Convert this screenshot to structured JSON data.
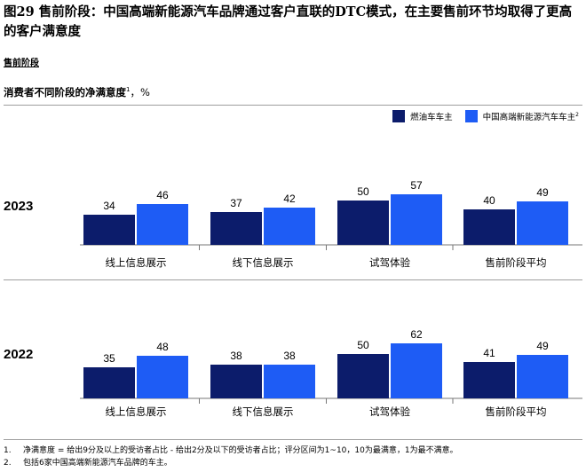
{
  "title": "图29 售前阶段：中国高端新能源汽车品牌通过客户直联的DTC模式，在主要售前环节均取得了更高的客户满意度",
  "section_label": "售前阶段",
  "subtitle": "消费者不同阶段的净满意度",
  "subtitle_sup": "1",
  "subtitle_unit": "，%",
  "legend": [
    {
      "name": "燃油车车主",
      "sup": "",
      "color": "#0c1c6b"
    },
    {
      "name": "中国高端新能源汽车车主",
      "sup": "2",
      "color": "#1e5cf5"
    }
  ],
  "chart_data": [
    {
      "type": "bar",
      "year_label": "2023",
      "categories": [
        "线上信息展示",
        "线下信息展示",
        "试驾体验",
        "售前阶段平均"
      ],
      "series": [
        {
          "name": "燃油车车主",
          "values": [
            34,
            37,
            50,
            40
          ]
        },
        {
          "name": "中国高端新能源汽车车主",
          "values": [
            46,
            42,
            57,
            49
          ]
        }
      ],
      "ylim": [
        0,
        70
      ]
    },
    {
      "type": "bar",
      "year_label": "2022",
      "categories": [
        "线上信息展示",
        "线下信息展示",
        "试驾体验",
        "售前阶段平均"
      ],
      "series": [
        {
          "name": "燃油车车主",
          "values": [
            35,
            38,
            50,
            41
          ]
        },
        {
          "name": "中国高端新能源汽车车主",
          "values": [
            48,
            38,
            62,
            49
          ]
        }
      ],
      "ylim": [
        0,
        70
      ]
    }
  ],
  "footnotes": [
    {
      "num": "1.",
      "text": "净满意度 = 给出9分及以上的受访者占比 - 给出2分及以下的受访者占比；评分区间为1~10，10为最满意，1为最不满意。"
    },
    {
      "num": "2.",
      "text": "包括6家中国高端新能源汽车品牌的车主。"
    }
  ]
}
